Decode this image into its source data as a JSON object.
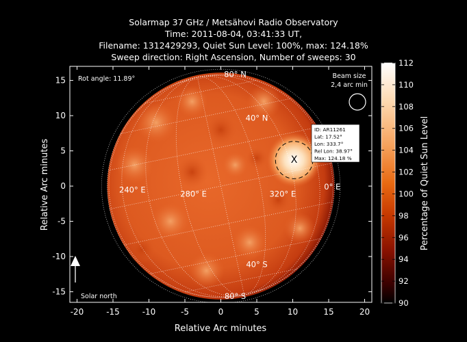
{
  "title_lines": [
    "Solarmap 37 GHz / Metsähovi Radio Observatory",
    "Time: 2011-08-04, 03:41:33 UT,",
    "Filename: 1312429293, Quiet Sun Level: 100%, max: 124.18%",
    "Sweep direction: Right Ascension, Number of sweeps: 30"
  ],
  "chart_data": {
    "type": "heatmap",
    "xlabel": "Relative Arc minutes",
    "ylabel": "Relative Arc minutes",
    "xlim": [
      -21,
      21
    ],
    "ylim": [
      -16.5,
      17
    ],
    "xticks": [
      -20,
      -15,
      -10,
      -5,
      0,
      5,
      10,
      15,
      20
    ],
    "yticks": [
      -15,
      -10,
      -5,
      0,
      5,
      10,
      15
    ],
    "solar_disk_radius": 15.8,
    "colorbar": {
      "label": "Percentage of Quiet Sun Level",
      "min": 90,
      "max": 112,
      "ticks": [
        90,
        92,
        94,
        96,
        98,
        100,
        102,
        104,
        106,
        108,
        110,
        112
      ],
      "colormap": [
        "#000000",
        "#3a0000",
        "#8a1200",
        "#c73a00",
        "#e86a12",
        "#f6a35e",
        "#fdd9b0",
        "#ffffff"
      ]
    },
    "grid_labels": [
      {
        "text": "80° N",
        "x": 2,
        "y": 15.5
      },
      {
        "text": "40° N",
        "x": 5,
        "y": 9.3
      },
      {
        "text": "40° S",
        "x": 5,
        "y": -11.5
      },
      {
        "text": "80° S",
        "x": 2,
        "y": -16
      },
      {
        "text": "240° E",
        "x": -12.3,
        "y": -0.9
      },
      {
        "text": "280° E",
        "x": -3.8,
        "y": -1.5
      },
      {
        "text": "320° E",
        "x": 8.6,
        "y": -1.5
      },
      {
        "text": "0° E",
        "x": 15.5,
        "y": -0.5
      }
    ],
    "active_region": {
      "marker": "X",
      "x": 10.2,
      "y": 3.7,
      "info": [
        "ID: AR11261",
        "Lat: 17.52°",
        "Lon: 333.7°",
        "Rel Lon: 38.97°",
        "Max: 124.18 %"
      ]
    },
    "annotations": {
      "rot_angle": "Rot angle: 11.89°",
      "beam_size": [
        "Beam size",
        "2,4 arc min"
      ],
      "solar_north": "Solar north"
    }
  }
}
